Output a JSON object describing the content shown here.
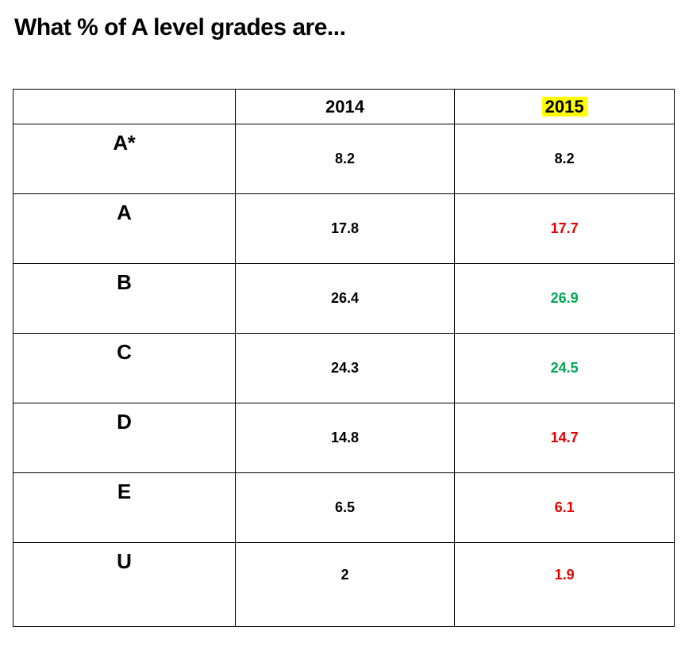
{
  "title": "What % of A level grades are...",
  "table": {
    "type": "table",
    "background_color": "#ffffff",
    "border_color": "#000000",
    "columns": [
      {
        "label": "",
        "highlight": false,
        "is_row_header": true
      },
      {
        "label": "2014",
        "highlight": false
      },
      {
        "label": "2015",
        "highlight": true,
        "highlight_color": "#ffff00"
      }
    ],
    "header_fontsize": 22,
    "grade_label_fontsize": 26,
    "value_fontsize": 18,
    "text_colors": {
      "default": "#000000",
      "down": "#e60000",
      "up": "#00a650"
    },
    "rows": [
      {
        "grade": "A*",
        "y2014": {
          "value": "8.2",
          "color": "default"
        },
        "y2015": {
          "value": "8.2",
          "color": "default"
        }
      },
      {
        "grade": "A",
        "y2014": {
          "value": "17.8",
          "color": "default"
        },
        "y2015": {
          "value": "17.7",
          "color": "down"
        }
      },
      {
        "grade": "B",
        "y2014": {
          "value": "26.4",
          "color": "default"
        },
        "y2015": {
          "value": "26.9",
          "color": "up"
        }
      },
      {
        "grade": "C",
        "y2014": {
          "value": "24.3",
          "color": "default"
        },
        "y2015": {
          "value": "24.5",
          "color": "up"
        }
      },
      {
        "grade": "D",
        "y2014": {
          "value": "14.8",
          "color": "default"
        },
        "y2015": {
          "value": "14.7",
          "color": "down"
        }
      },
      {
        "grade": "E",
        "y2014": {
          "value": "6.5",
          "color": "default"
        },
        "y2015": {
          "value": "6.1",
          "color": "down"
        }
      },
      {
        "grade": "U",
        "y2014": {
          "value": "2",
          "color": "default"
        },
        "y2015": {
          "value": "1.9",
          "color": "down"
        }
      }
    ]
  }
}
